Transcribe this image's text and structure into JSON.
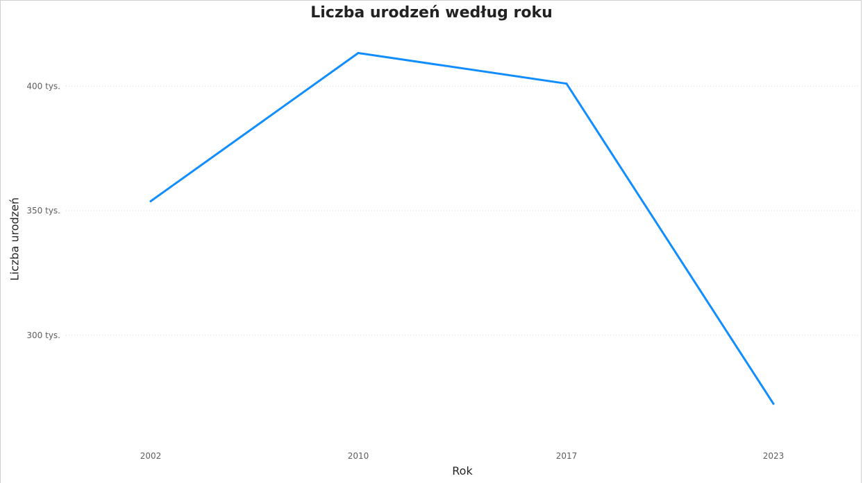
{
  "chart_data": {
    "type": "line",
    "title": "Liczba urodzeń według roku",
    "xlabel": "Rok",
    "ylabel": "Liczba urodzeń",
    "categories": [
      "2002",
      "2010",
      "2017",
      "2023"
    ],
    "series": [
      {
        "values": [
          353800,
          413300,
          401000,
          272500
        ]
      }
    ],
    "yticks": [
      {
        "value": 300000,
        "label": "300 tys."
      },
      {
        "value": 350000,
        "label": "350 tys."
      },
      {
        "value": 400000,
        "label": "400 tys."
      }
    ],
    "ylim": [
      256000,
      424000
    ],
    "grid": true,
    "line_color": "#118DFF",
    "grid_color": "#d0d0d0"
  }
}
